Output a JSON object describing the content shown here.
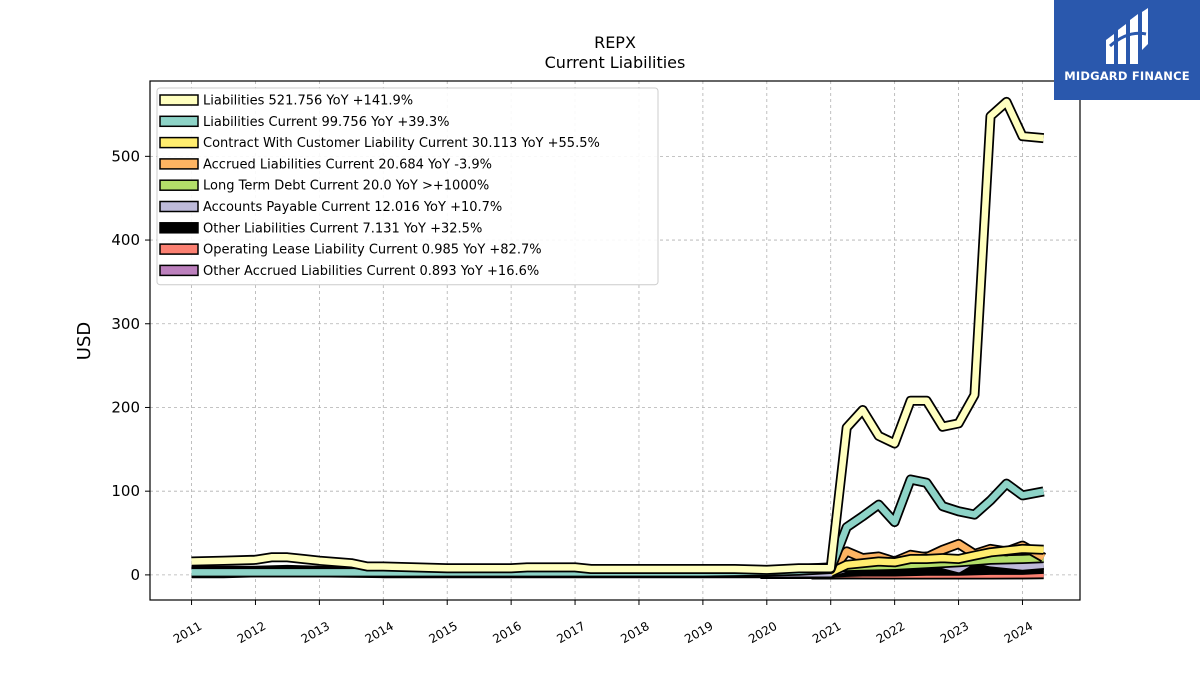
{
  "chart_data": {
    "type": "area",
    "title": "REPX",
    "subtitle": "Current  Liabilities",
    "ylabel": "USD",
    "xlabel": "",
    "ylim": [
      -30,
      590
    ],
    "xlim": [
      2010.35,
      2024.9
    ],
    "yticks": [
      0,
      100,
      200,
      300,
      400,
      500
    ],
    "xticks": [
      "2011",
      "2012",
      "2013",
      "2014",
      "2015",
      "2016",
      "2017",
      "2018",
      "2019",
      "2020",
      "2021",
      "2022",
      "2023",
      "2024"
    ],
    "grid": true,
    "legend_position": "top-left",
    "series": [
      {
        "name": "Liabilities",
        "legend": "Liabilities  521.756 YoY +141.9%",
        "color": "#ffffbf",
        "x": [
          2011.0,
          2011.5,
          2012.0,
          2012.25,
          2012.5,
          2012.75,
          2013.0,
          2013.5,
          2013.75,
          2014.0,
          2014.5,
          2015.0,
          2015.5,
          2016.0,
          2016.25,
          2016.75,
          2017.0,
          2017.25,
          2017.5,
          2018.0,
          2018.5,
          2019.0,
          2019.5,
          2020.0,
          2020.5,
          2021.0,
          2021.25,
          2021.5,
          2021.75,
          2022.0,
          2022.25,
          2022.5,
          2022.75,
          2023.0,
          2023.25,
          2023.5,
          2023.75,
          2024.0,
          2024.33
        ],
        "values": [
          16,
          17,
          18,
          21,
          21,
          19,
          17,
          14,
          10,
          10,
          9,
          8,
          8,
          8,
          9,
          9,
          9,
          7,
          7,
          7,
          7,
          7,
          7,
          6,
          8,
          8,
          176,
          197,
          166,
          157,
          208,
          208,
          177,
          181,
          215,
          548,
          565,
          524,
          521.756
        ]
      },
      {
        "name": "Liabilities Current",
        "legend": "Liabilities Current  99.756 YoY +39.3%",
        "color": "#8dd3c7",
        "x": [
          2011.0,
          2012.0,
          2013.0,
          2014.0,
          2015.0,
          2016.0,
          2017.0,
          2018.0,
          2019.0,
          2020.0,
          2020.5,
          2021.0,
          2021.25,
          2021.5,
          2021.75,
          2022.0,
          2022.25,
          2022.5,
          2022.75,
          2023.0,
          2023.25,
          2023.5,
          2023.75,
          2024.0,
          2024.33
        ],
        "values": [
          3,
          3,
          3,
          3,
          3,
          3,
          3,
          3,
          3,
          4,
          5,
          7,
          57,
          70,
          84,
          63,
          114,
          110,
          82,
          76,
          72,
          89,
          109,
          95,
          99.756
        ]
      },
      {
        "name": "Contract With Customer Liability Current",
        "legend": "Contract With Customer Liability Current  30.113 YoY +55.5%",
        "color": "#ffed6f",
        "x": [
          2021.0,
          2021.25,
          2021.5,
          2021.75,
          2022.0,
          2022.25,
          2022.5,
          2022.75,
          2023.0,
          2023.25,
          2023.5,
          2023.75,
          2024.0,
          2024.33
        ],
        "values": [
          3,
          12,
          14,
          16,
          15,
          19,
          19,
          20,
          19,
          23,
          27,
          29,
          31,
          30.113
        ]
      },
      {
        "name": "Accrued Liabilities Current",
        "legend": "Accrued Liabilities Current  20.684 YoY -3.9%",
        "color": "#fdb462",
        "x": [
          2021.0,
          2021.25,
          2021.5,
          2021.75,
          2022.0,
          2022.25,
          2022.5,
          2022.75,
          2023.0,
          2023.25,
          2023.5,
          2023.75,
          2024.0,
          2024.33
        ],
        "values": [
          3,
          28,
          20,
          22,
          16,
          24,
          21,
          30,
          37,
          25,
          31,
          28,
          35,
          20.684
        ]
      },
      {
        "name": "Long Term Debt Current",
        "legend": "Long Term Debt Current  20.0 YoY >+1000%",
        "color": "#b3de69",
        "x": [
          2019.5,
          2020.0,
          2020.5,
          2021.0,
          2021.5,
          2022.0,
          2022.5,
          2023.0,
          2023.5,
          2024.0,
          2024.33
        ],
        "values": [
          3,
          5,
          7,
          9,
          10,
          11,
          13,
          15,
          18,
          19,
          20.0
        ]
      },
      {
        "name": "Accounts Payable Current",
        "legend": "Accounts Payable Current  12.016 YoY +10.7%",
        "color": "#bebada",
        "x": [
          2011.0,
          2011.5,
          2012.0,
          2013.0,
          2014.0,
          2015.0,
          2016.0,
          2017.0,
          2018.0,
          2019.0,
          2019.9,
          2021.0,
          2021.25,
          2021.5,
          2021.75,
          2022.0,
          2022.25,
          2022.5,
          2022.75,
          2023.0,
          2023.25,
          2023.5,
          2023.75,
          2024.0,
          2024.33
        ],
        "values": [
          2,
          2,
          3,
          3,
          2,
          2,
          2,
          2,
          2,
          2,
          2,
          2,
          8,
          12,
          14,
          10,
          20,
          22,
          12,
          7,
          18,
          14,
          12,
          10,
          12.016
        ]
      },
      {
        "name": "Other Liabilities Current",
        "legend": "Other Liabilities Current  7.131 YoY +32.5%",
        "color": "#000000",
        "x": [
          2011.0,
          2012.0,
          2012.5,
          2013.0,
          2014.0,
          2015.0,
          2016.0,
          2017.0,
          2018.0,
          2019.0,
          2020.0,
          2021.0,
          2021.5,
          2022.0,
          2022.5,
          2023.0,
          2023.5,
          2024.0,
          2024.33
        ],
        "values": [
          5,
          5,
          6,
          5,
          5,
          5,
          5,
          5,
          5,
          4,
          4,
          3,
          4,
          4,
          5,
          5,
          6,
          6,
          7.131
        ]
      },
      {
        "name": "Operating Lease Liability Current",
        "legend": "Operating Lease Liability Current  0.985 YoY +82.7%",
        "color": "#fb8072",
        "x": [
          2019.9,
          2020.25,
          2020.5,
          2020.75,
          2021.0,
          2021.5,
          2022.0,
          2022.5,
          2023.0,
          2023.5,
          2024.0,
          2024.33
        ],
        "values": [
          1,
          1,
          1,
          1,
          1,
          0.6,
          0.5,
          0.5,
          0.5,
          0.5,
          0.6,
          0.985
        ]
      },
      {
        "name": "Other Accrued Liabilities Current",
        "legend": "Other Accrued Liabilities Current  0.893 YoY +16.6%",
        "color": "#bc80bd",
        "x": [
          2020.7,
          2021.0,
          2021.25,
          2021.5,
          2021.75,
          2022.0,
          2022.25,
          2022.5,
          2022.75,
          2023.0,
          2023.25,
          2023.5,
          2023.75,
          2024.0,
          2024.33
        ],
        "values": [
          0.5,
          0.5,
          0.6,
          0.7,
          0.8,
          0.8,
          0.8,
          0.8,
          0.8,
          0.8,
          0.8,
          0.8,
          0.8,
          0.8,
          0.893
        ]
      }
    ]
  },
  "logo": {
    "name": "MIDGARD FINANCE",
    "color": "#2a58ad"
  }
}
